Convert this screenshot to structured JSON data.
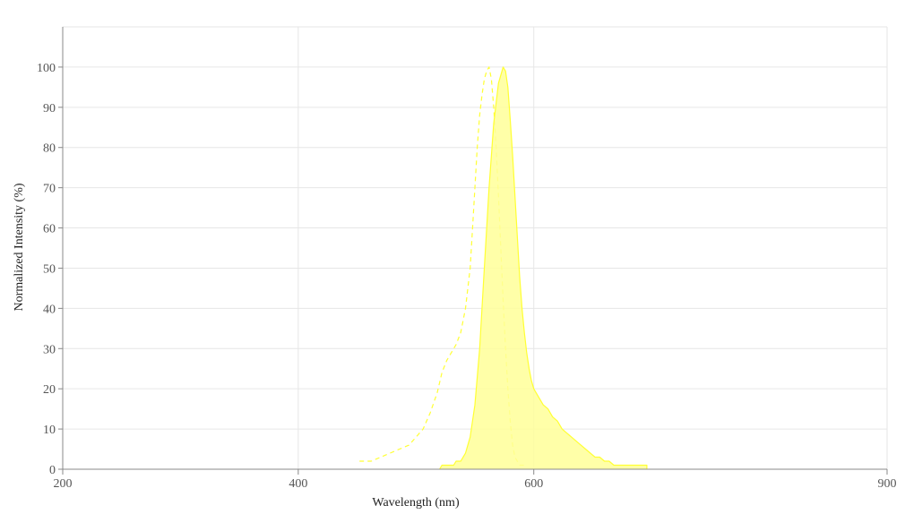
{
  "chart_data": {
    "type": "area",
    "title": "",
    "xlabel": "Wavelength (nm)",
    "ylabel": "Normalized Intensity (%)",
    "xlim": [
      200,
      900
    ],
    "ylim": [
      0,
      110
    ],
    "x_tick_labels": [
      "200",
      "400",
      "600",
      "900"
    ],
    "y_tick_labels": [
      "0",
      "10",
      "20",
      "30",
      "40",
      "50",
      "60",
      "70",
      "80",
      "90",
      "100"
    ],
    "grid": true,
    "legend": "none",
    "colors": {
      "line": "#ffff33",
      "fill": "#ffff99",
      "grid": "#e6e6e6",
      "axis": "#888888"
    },
    "series": [
      {
        "style": "dashed",
        "filled": false,
        "points": [
          [
            452,
            2
          ],
          [
            462,
            2
          ],
          [
            470,
            3
          ],
          [
            478,
            4
          ],
          [
            486,
            5
          ],
          [
            494,
            6
          ],
          [
            500,
            8
          ],
          [
            506,
            10
          ],
          [
            512,
            14
          ],
          [
            518,
            19
          ],
          [
            522,
            24
          ],
          [
            526,
            27
          ],
          [
            530,
            29
          ],
          [
            534,
            31
          ],
          [
            538,
            34
          ],
          [
            542,
            40
          ],
          [
            546,
            50
          ],
          [
            548,
            60
          ],
          [
            550,
            70
          ],
          [
            552,
            80
          ],
          [
            554,
            88
          ],
          [
            556,
            93
          ],
          [
            558,
            97
          ],
          [
            560,
            99
          ],
          [
            562,
            100
          ],
          [
            564,
            97
          ],
          [
            566,
            90
          ],
          [
            568,
            80
          ],
          [
            570,
            68
          ],
          [
            572,
            55
          ],
          [
            574,
            42
          ],
          [
            576,
            30
          ],
          [
            578,
            20
          ],
          [
            580,
            12
          ],
          [
            582,
            6
          ],
          [
            584,
            3
          ],
          [
            586,
            2
          ],
          [
            588,
            1
          ],
          [
            592,
            1
          ]
        ]
      },
      {
        "style": "solid",
        "filled": true,
        "points": [
          [
            520,
            0
          ],
          [
            522,
            1
          ],
          [
            532,
            1
          ],
          [
            534,
            2
          ],
          [
            538,
            2
          ],
          [
            542,
            4
          ],
          [
            546,
            8
          ],
          [
            550,
            16
          ],
          [
            554,
            30
          ],
          [
            558,
            50
          ],
          [
            562,
            70
          ],
          [
            566,
            86
          ],
          [
            570,
            96
          ],
          [
            574,
            100
          ],
          [
            576,
            99
          ],
          [
            578,
            95
          ],
          [
            580,
            87
          ],
          [
            582,
            78
          ],
          [
            584,
            68
          ],
          [
            586,
            58
          ],
          [
            588,
            48
          ],
          [
            590,
            40
          ],
          [
            592,
            34
          ],
          [
            594,
            29
          ],
          [
            596,
            25
          ],
          [
            598,
            22
          ],
          [
            600,
            20
          ],
          [
            604,
            18
          ],
          [
            608,
            16
          ],
          [
            612,
            15
          ],
          [
            616,
            13
          ],
          [
            620,
            12
          ],
          [
            624,
            10
          ],
          [
            628,
            9
          ],
          [
            632,
            8
          ],
          [
            636,
            7
          ],
          [
            640,
            6
          ],
          [
            644,
            5
          ],
          [
            648,
            4
          ],
          [
            652,
            3
          ],
          [
            656,
            3
          ],
          [
            660,
            2
          ],
          [
            664,
            2
          ],
          [
            668,
            1
          ],
          [
            680,
            1
          ],
          [
            696,
            1
          ],
          [
            696,
            0
          ]
        ]
      }
    ]
  }
}
